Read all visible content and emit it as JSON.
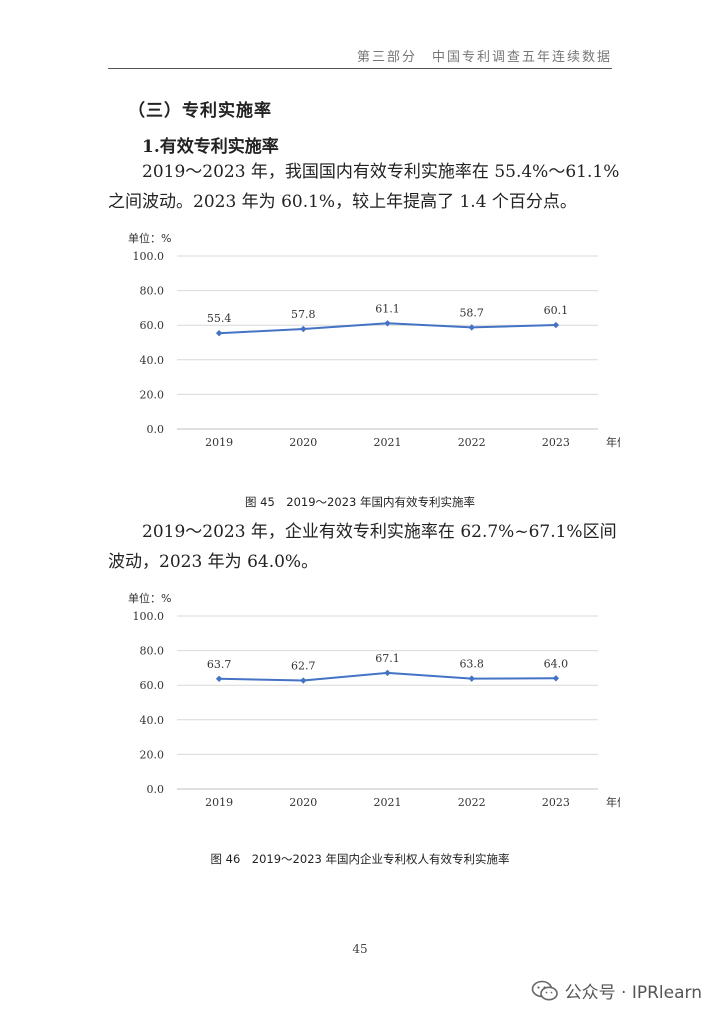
{
  "header": {
    "text": "第三部分　中国专利调查五年连续数据"
  },
  "section_title": "（三）专利实施率",
  "subsection_title": "1.有效专利实施率",
  "paragraphs": [
    "2019～2023 年，我国国内有效专利实施率在 55.4%～61.1%之间波动。2023 年为 60.1%，较上年提高了 1.4 个百分点。",
    "2019～2023 年，企业有效专利实施率在 62.7%~67.1%区间波动，2023 年为 64.0%。"
  ],
  "chart_data": [
    {
      "type": "line",
      "unit_label": "单位：%",
      "xlabel": "年份",
      "categories": [
        "2019",
        "2020",
        "2021",
        "2022",
        "2023"
      ],
      "series": [
        {
          "values": [
            55.4,
            57.8,
            61.1,
            58.7,
            60.1
          ]
        }
      ],
      "ylim": [
        0,
        100
      ],
      "yticks": [
        "0.0",
        "20.0",
        "40.0",
        "60.0",
        "80.0",
        "100.0"
      ],
      "data_labels": [
        "55.4",
        "57.8",
        "61.1",
        "58.7",
        "60.1"
      ],
      "grid": true,
      "color": "#4472C4",
      "caption": "图 45　2019～2023 年国内有效专利实施率"
    },
    {
      "type": "line",
      "unit_label": "单位：%",
      "xlabel": "年份",
      "categories": [
        "2019",
        "2020",
        "2021",
        "2022",
        "2023"
      ],
      "series": [
        {
          "values": [
            63.7,
            62.7,
            67.1,
            63.8,
            64.0
          ]
        }
      ],
      "ylim": [
        0,
        100
      ],
      "yticks": [
        "0.0",
        "20.0",
        "40.0",
        "60.0",
        "80.0",
        "100.0"
      ],
      "data_labels": [
        "63.7",
        "62.7",
        "67.1",
        "63.8",
        "64.0"
      ],
      "grid": true,
      "color": "#4472C4",
      "caption": "图 46　2019～2023 年国内企业专利权人有效专利实施率"
    }
  ],
  "page_number": "45",
  "watermark": {
    "text": "公众号 · IPRlearn",
    "icon": "wechat-logo-icon"
  }
}
